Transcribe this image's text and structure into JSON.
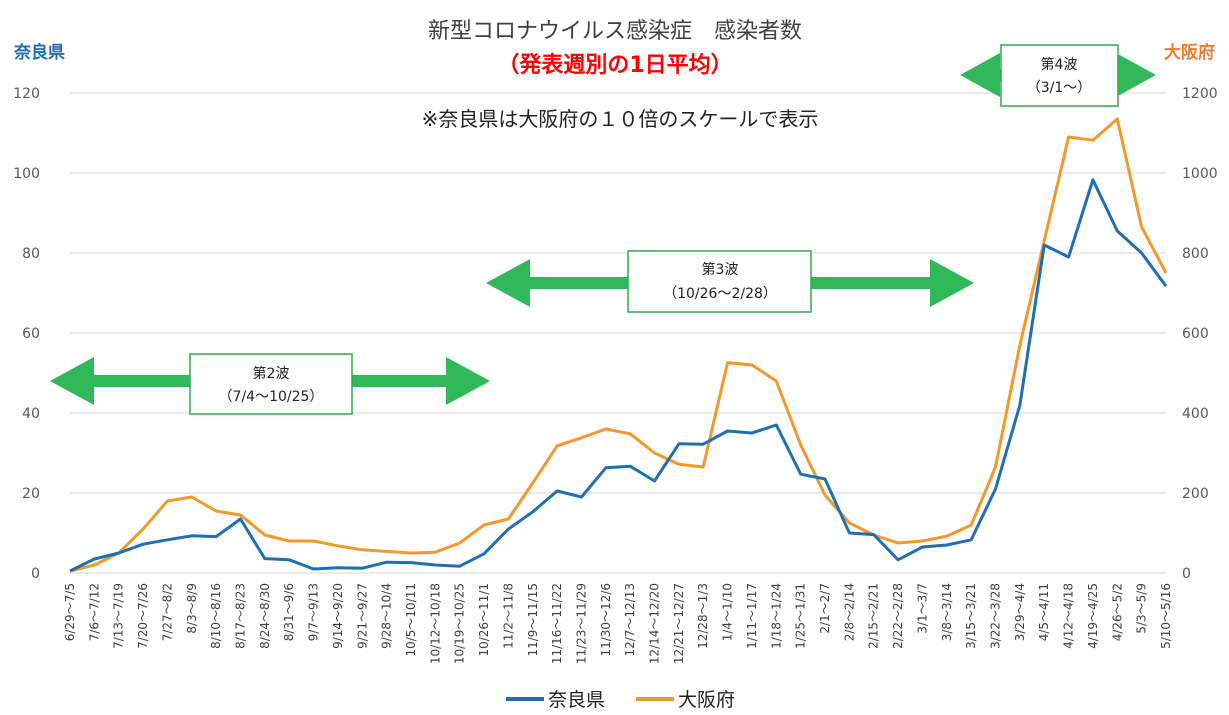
{
  "chart_data": {
    "type": "line",
    "title": "新型コロナウイルス感染症　感染者数",
    "subtitle": "（発表週別の1日平均）",
    "note": "※奈良県は大阪府の１０倍のスケールで表示",
    "ylabel_left": "奈良県",
    "ylabel_right": "大阪府",
    "ylim_left": [
      0,
      120
    ],
    "ylim_right": [
      0,
      1200
    ],
    "yticks_left": [
      0,
      20,
      40,
      60,
      80,
      100,
      120
    ],
    "yticks_right": [
      0,
      200,
      400,
      600,
      800,
      1000,
      1200
    ],
    "grid": true,
    "legend_position": "bottom",
    "categories": [
      "6/29～7/5",
      "7/6～7/12",
      "7/13～7/19",
      "7/20～7/26",
      "7/27～8/2",
      "8/3～8/9",
      "8/10～8/16",
      "8/17～8/23",
      "8/24～8/30",
      "8/31～9/6",
      "9/7～9/13",
      "9/14～9/20",
      "9/21～9/27",
      "9/28～10/4",
      "10/5～10/11",
      "10/12～10/18",
      "10/19～10/25",
      "10/26～11/1",
      "11/2～11/8",
      "11/9～11/15",
      "11/16～11/22",
      "11/23～11/29",
      "11/30～12/6",
      "12/7～12/13",
      "12/14～12/20",
      "12/21～12/27",
      "12/28～1/3",
      "1/4～1/10",
      "1/11～1/17",
      "1/18～1/24",
      "1/25～1/31",
      "2/1～2/7",
      "2/8～2/14",
      "2/15～2/21",
      "2/22～2/28",
      "3/1～3/7",
      "3/8～3/14",
      "3/15～3/21",
      "3/22～3/28",
      "3/29～4/4",
      "4/5～4/11",
      "4/12～4/18",
      "4/19～4/25",
      "4/26～5/2",
      "5/3～5/9",
      "5/10～5/16"
    ],
    "series": [
      {
        "name": "奈良県",
        "axis": "left",
        "color": "#1f6fb4",
        "values": [
          0.5,
          3.5,
          5,
          7.2,
          8.3,
          9.3,
          9.1,
          13.5,
          3.6,
          3.3,
          1,
          1.3,
          1.2,
          2.7,
          2.6,
          2,
          1.7,
          4.8,
          11,
          15.3,
          20.5,
          19,
          26.3,
          26.7,
          23,
          32.3,
          32.2,
          35.5,
          35,
          37,
          24.7,
          23.5,
          10,
          9.6,
          3.3,
          6.5,
          7,
          8.3,
          21,
          42,
          82,
          79,
          98.3,
          85.5,
          80,
          71.7
        ]
      },
      {
        "name": "大阪府",
        "axis": "right",
        "color": "#f3992b",
        "values": [
          5,
          20,
          50,
          110,
          180,
          190,
          155,
          145,
          95,
          80,
          80,
          68,
          58,
          54,
          50,
          52,
          75,
          120,
          135,
          225,
          318,
          338,
          360,
          348,
          300,
          272,
          265,
          526,
          520,
          480,
          320,
          195,
          125,
          95,
          75,
          80,
          92,
          120,
          265,
          570,
          830,
          1090,
          1082,
          1135,
          865,
          750
        ]
      }
    ],
    "annotations": [
      {
        "label": "第2波",
        "range": "（7/4～10/25）"
      },
      {
        "label": "第3波",
        "range": "（10/26～2/28）"
      },
      {
        "label": "第4波",
        "range": "（3/1～）"
      }
    ]
  }
}
